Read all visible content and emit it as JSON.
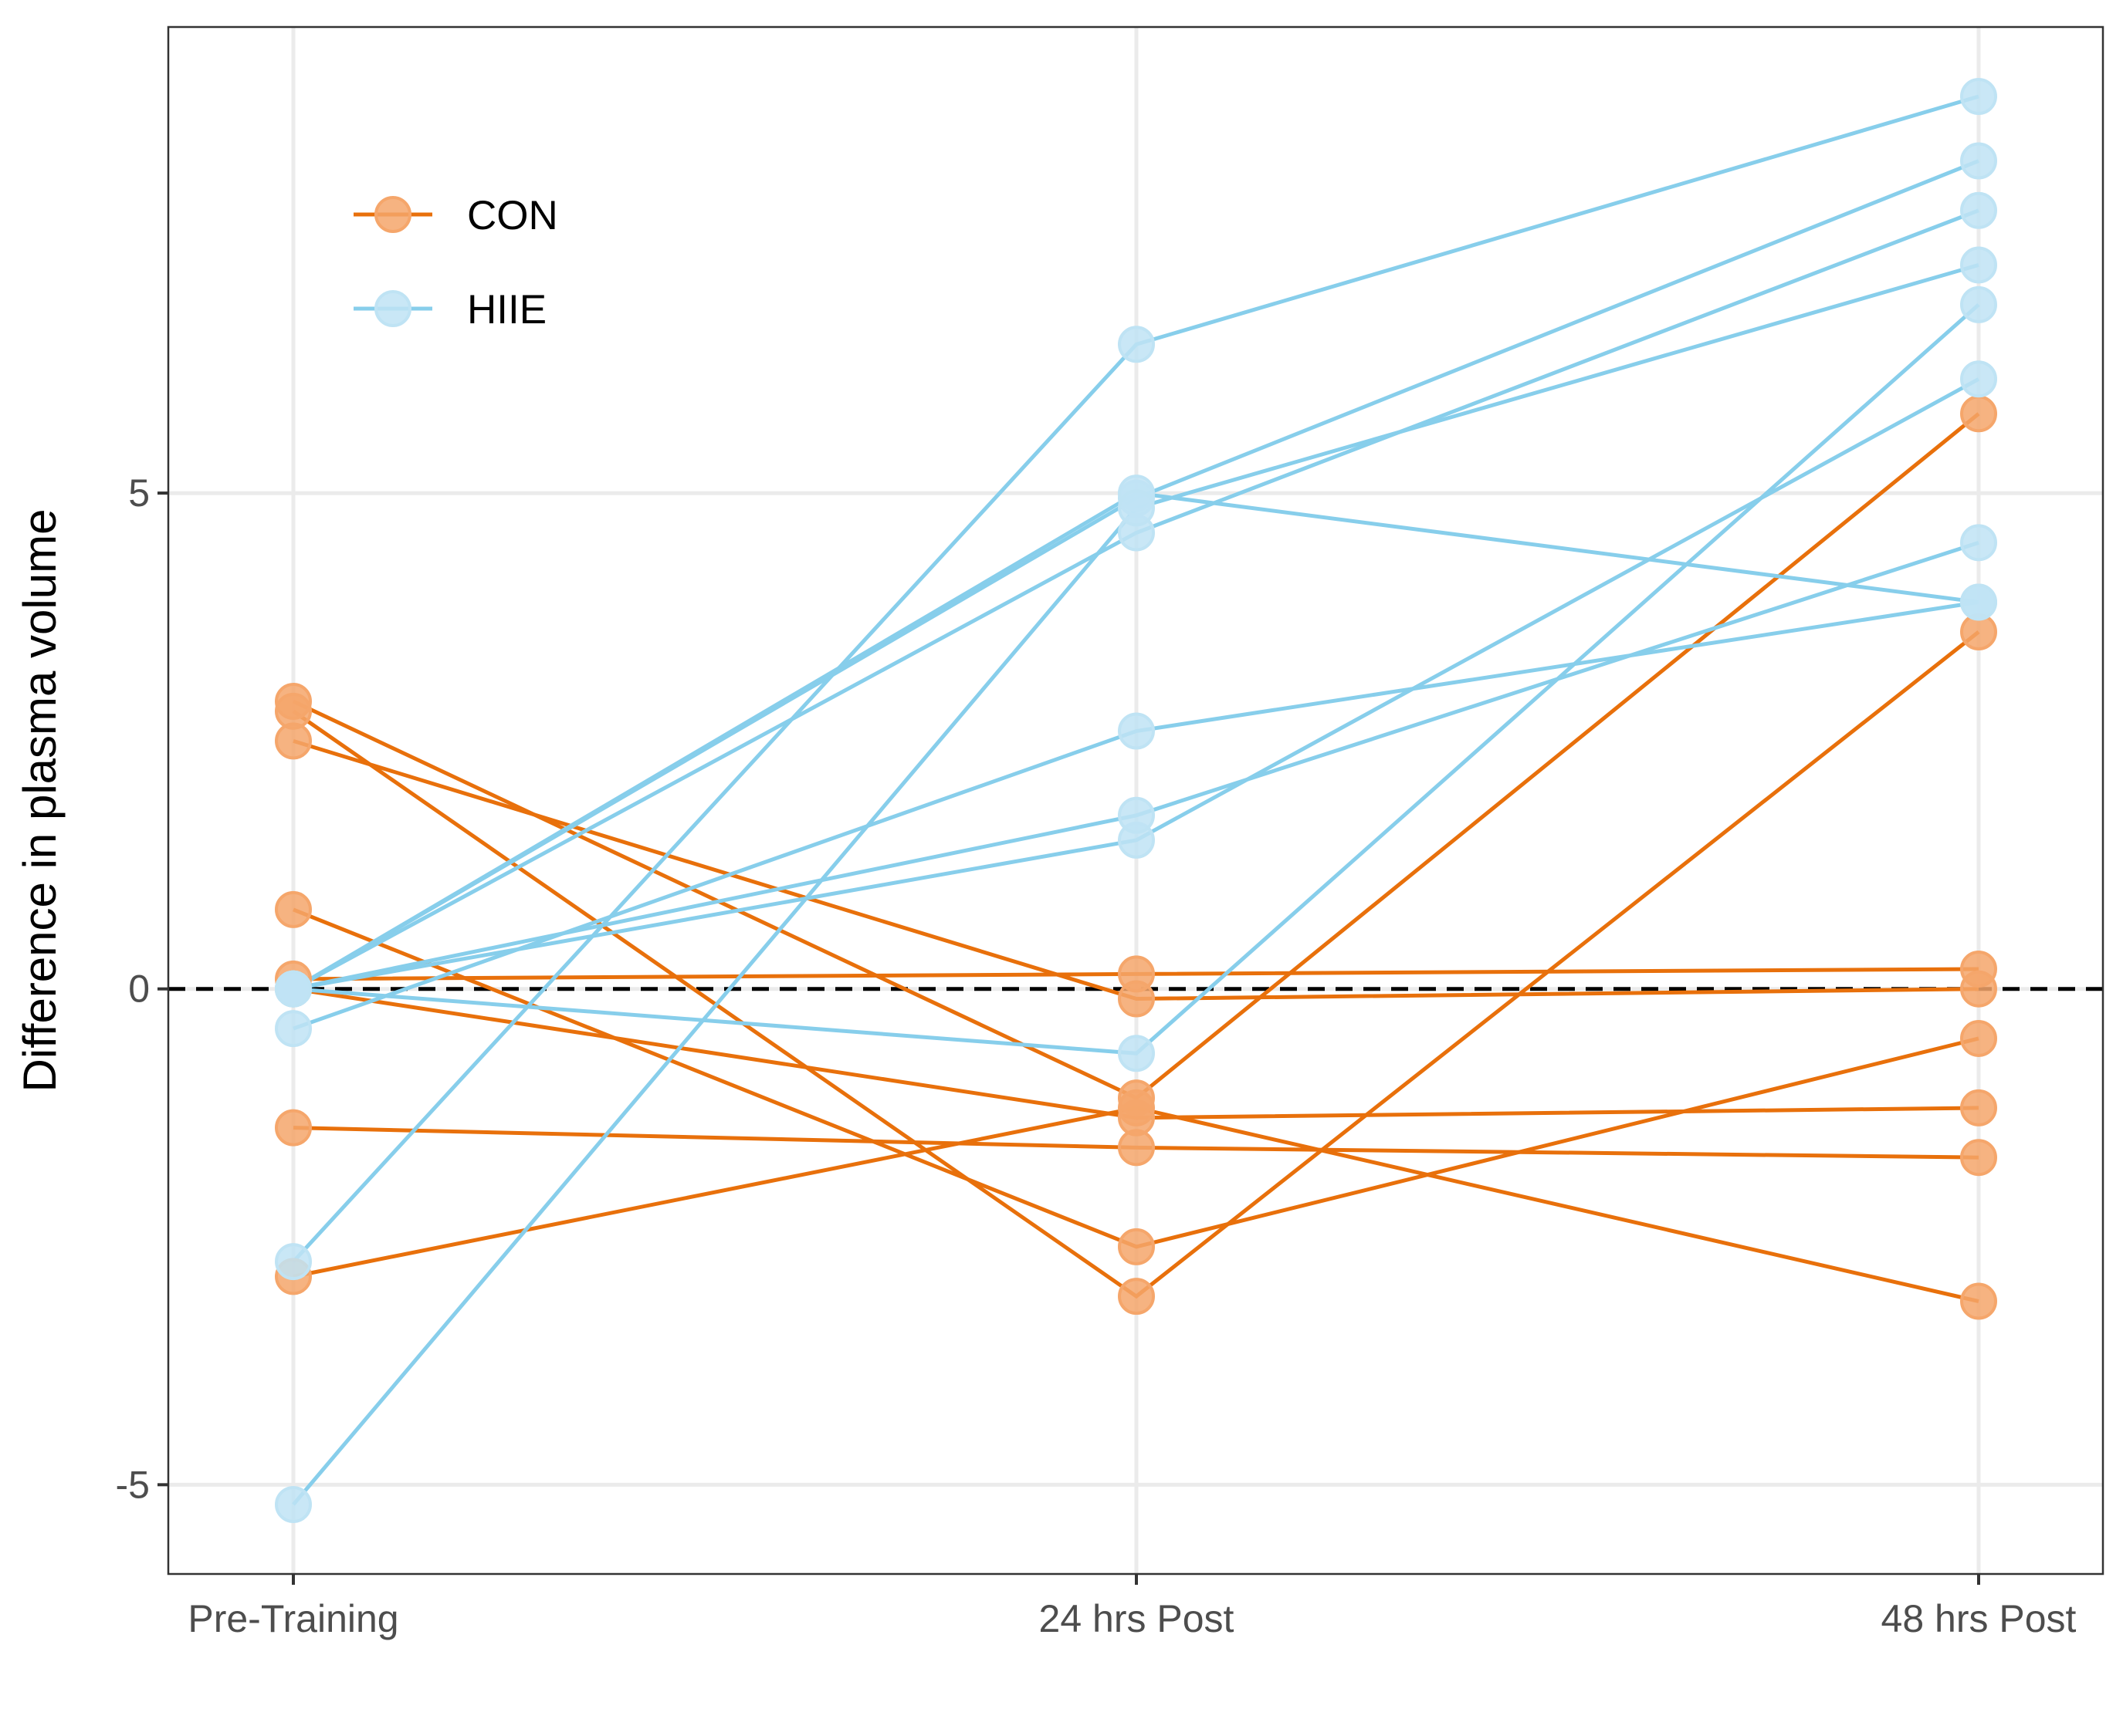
{
  "chart_data": {
    "type": "line",
    "title": "",
    "xlabel": "",
    "ylabel": "Difference in plasma volume",
    "categories": [
      "Pre-Training",
      "24 hrs Post",
      "48 hrs Post"
    ],
    "ylim": [
      -5.9,
      9.7
    ],
    "yticks": [
      -5,
      0,
      5
    ],
    "ytick_labels": [
      "-5",
      "0",
      "5"
    ],
    "reference_line": 0,
    "grid": true,
    "legend_position": "top-left",
    "groups": [
      {
        "name": "CON",
        "color": "#E8700B",
        "fill": "#F5A66B",
        "subjects": [
          [
            2.9,
            -1.1,
            5.8
          ],
          [
            2.8,
            -3.1,
            3.6
          ],
          [
            2.5,
            -0.1,
            0.0
          ],
          [
            0.8,
            -2.6,
            -0.5
          ],
          [
            0.1,
            0.15,
            0.2
          ],
          [
            0.0,
            -1.3,
            -1.2
          ],
          [
            -1.4,
            -1.6,
            -1.7
          ],
          [
            -2.9,
            -1.2,
            -3.15
          ]
        ]
      },
      {
        "name": "HIIE",
        "color": "#87CEEB",
        "fill": "#BFE3F4",
        "subjects": [
          [
            -2.75,
            6.5,
            9.0
          ],
          [
            0.0,
            4.95,
            8.35
          ],
          [
            0.0,
            4.6,
            7.85
          ],
          [
            0.0,
            5.0,
            3.9
          ],
          [
            -5.2,
            4.85,
            7.3
          ],
          [
            0.0,
            -0.65,
            6.9
          ],
          [
            0.0,
            1.5,
            6.15
          ],
          [
            0.0,
            1.75,
            4.5
          ],
          [
            -0.4,
            2.6,
            3.9
          ]
        ]
      }
    ]
  }
}
